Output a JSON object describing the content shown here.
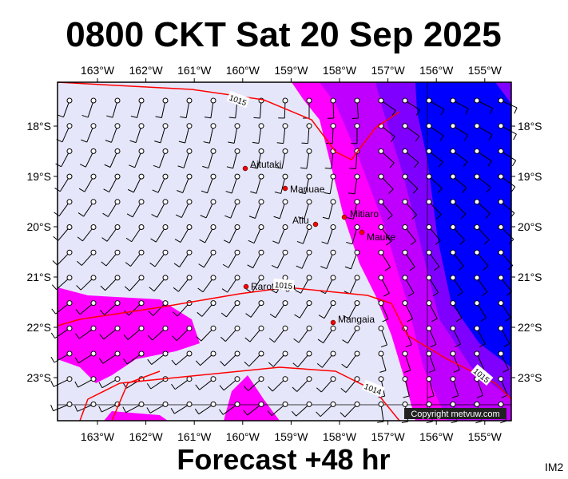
{
  "title": "0800 CKT Sat 20 Sep 2025",
  "footer": "Forecast +48 hr",
  "corner": "IM2",
  "copyright": "Copyright metvuw.com",
  "longitudes": [
    "163°W",
    "162°W",
    "161°W",
    "160°W",
    "159°W",
    "158°W",
    "157°W",
    "156°W",
    "155°W"
  ],
  "latitudes": [
    "18°S",
    "19°S",
    "20°S",
    "21°S",
    "22°S",
    "23°S"
  ],
  "places": [
    {
      "label": "Aitutaki"
    },
    {
      "label": "Manuae"
    },
    {
      "label": "Atiu"
    },
    {
      "label": "Mitiaro"
    },
    {
      "label": "Mauke"
    },
    {
      "label": "Rarotonga"
    },
    {
      "label": "Mangaia"
    }
  ],
  "isobars": [
    "1015",
    "1015",
    "1015",
    "1014"
  ]
}
